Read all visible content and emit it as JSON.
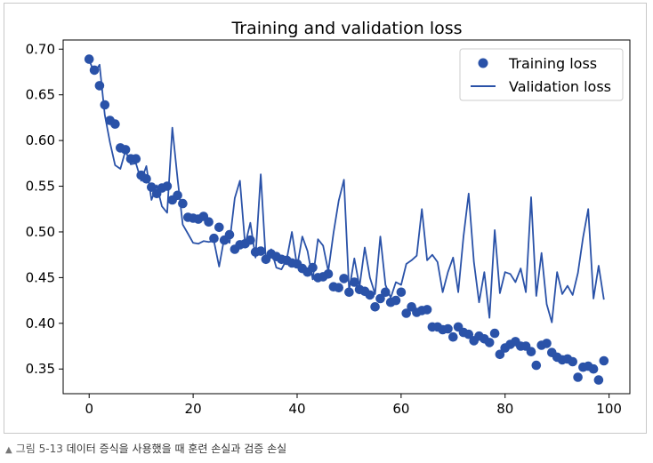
{
  "caption": {
    "marker": "▲",
    "figure_label": "그림 5-13",
    "text": "데이터 증식을 사용했을 때 훈련 손실과 검증 손실"
  },
  "colors": {
    "series": "#2a52a8",
    "axis": "#000000"
  },
  "chart_data": {
    "type": "line",
    "title": "Training and validation loss",
    "xlabel": "",
    "ylabel": "",
    "xlim": [
      -5,
      104
    ],
    "ylim": [
      0.323,
      0.71
    ],
    "xticks": [
      0,
      20,
      40,
      60,
      80,
      100
    ],
    "xtick_labels": [
      "0",
      "20",
      "40",
      "60",
      "80",
      "100"
    ],
    "yticks": [
      0.35,
      0.4,
      0.45,
      0.5,
      0.55,
      0.6,
      0.65,
      0.7
    ],
    "ytick_labels": [
      "0.35",
      "0.40",
      "0.45",
      "0.50",
      "0.55",
      "0.60",
      "0.65",
      "0.70"
    ],
    "legend_position": "top-right",
    "grid": false,
    "series": [
      {
        "name": "Training loss",
        "style": "scatter",
        "x": [
          0,
          1,
          2,
          3,
          4,
          5,
          6,
          7,
          8,
          9,
          10,
          11,
          12,
          13,
          14,
          15,
          16,
          17,
          18,
          19,
          20,
          21,
          22,
          23,
          24,
          25,
          26,
          27,
          28,
          29,
          30,
          31,
          32,
          33,
          34,
          35,
          36,
          37,
          38,
          39,
          40,
          41,
          42,
          43,
          44,
          45,
          46,
          47,
          48,
          49,
          50,
          51,
          52,
          53,
          54,
          55,
          56,
          57,
          58,
          59,
          60,
          61,
          62,
          63,
          64,
          65,
          66,
          67,
          68,
          69,
          70,
          71,
          72,
          73,
          74,
          75,
          76,
          77,
          78,
          79,
          80,
          81,
          82,
          83,
          84,
          85,
          86,
          87,
          88,
          89,
          90,
          91,
          92,
          93,
          94,
          95,
          96,
          97,
          98,
          99
        ],
        "values": [
          0.689,
          0.677,
          0.66,
          0.639,
          0.622,
          0.618,
          0.592,
          0.59,
          0.58,
          0.58,
          0.562,
          0.558,
          0.549,
          0.542,
          0.548,
          0.55,
          0.535,
          0.54,
          0.531,
          0.516,
          0.515,
          0.514,
          0.517,
          0.511,
          0.493,
          0.505,
          0.491,
          0.497,
          0.481,
          0.486,
          0.487,
          0.491,
          0.478,
          0.479,
          0.47,
          0.476,
          0.473,
          0.47,
          0.469,
          0.466,
          0.465,
          0.46,
          0.456,
          0.461,
          0.45,
          0.451,
          0.454,
          0.44,
          0.439,
          0.449,
          0.434,
          0.445,
          0.437,
          0.435,
          0.431,
          0.418,
          0.427,
          0.434,
          0.423,
          0.425,
          0.434,
          0.411,
          0.418,
          0.412,
          0.414,
          0.415,
          0.396,
          0.396,
          0.393,
          0.394,
          0.385,
          0.396,
          0.39,
          0.388,
          0.381,
          0.386,
          0.383,
          0.379,
          0.389,
          0.366,
          0.373,
          0.377,
          0.38,
          0.375,
          0.375,
          0.369,
          0.354,
          0.376,
          0.378,
          0.368,
          0.363,
          0.36,
          0.361,
          0.358,
          0.341,
          0.352,
          0.353,
          0.35,
          0.338,
          0.359
        ]
      },
      {
        "name": "Validation loss",
        "style": "line",
        "x": [
          0,
          1,
          2,
          3,
          4,
          5,
          6,
          7,
          8,
          9,
          10,
          11,
          12,
          13,
          14,
          15,
          16,
          17,
          18,
          19,
          20,
          21,
          22,
          23,
          24,
          25,
          26,
          27,
          28,
          29,
          30,
          31,
          32,
          33,
          34,
          35,
          36,
          37,
          38,
          39,
          40,
          41,
          42,
          43,
          44,
          45,
          46,
          47,
          48,
          49,
          50,
          51,
          52,
          53,
          54,
          55,
          56,
          57,
          58,
          59,
          60,
          61,
          62,
          63,
          64,
          65,
          66,
          67,
          68,
          69,
          70,
          71,
          72,
          73,
          74,
          75,
          76,
          77,
          78,
          79,
          80,
          81,
          82,
          83,
          84,
          85,
          86,
          87,
          88,
          89,
          90,
          91,
          92,
          93,
          94,
          95,
          96,
          97,
          98,
          99
        ],
        "values": [
          0.688,
          0.674,
          0.683,
          0.628,
          0.598,
          0.573,
          0.569,
          0.589,
          0.574,
          0.575,
          0.556,
          0.572,
          0.535,
          0.551,
          0.528,
          0.521,
          0.614,
          0.558,
          0.508,
          0.498,
          0.488,
          0.487,
          0.49,
          0.489,
          0.49,
          0.462,
          0.494,
          0.488,
          0.537,
          0.556,
          0.486,
          0.51,
          0.472,
          0.563,
          0.467,
          0.481,
          0.461,
          0.459,
          0.47,
          0.5,
          0.462,
          0.495,
          0.479,
          0.448,
          0.492,
          0.485,
          0.457,
          0.499,
          0.534,
          0.557,
          0.436,
          0.471,
          0.44,
          0.483,
          0.45,
          0.432,
          0.495,
          0.442,
          0.428,
          0.445,
          0.442,
          0.465,
          0.469,
          0.474,
          0.525,
          0.469,
          0.475,
          0.467,
          0.434,
          0.456,
          0.472,
          0.434,
          0.495,
          0.542,
          0.467,
          0.423,
          0.456,
          0.406,
          0.502,
          0.433,
          0.456,
          0.454,
          0.445,
          0.46,
          0.434,
          0.538,
          0.43,
          0.477,
          0.421,
          0.401,
          0.456,
          0.432,
          0.441,
          0.431,
          0.455,
          0.494,
          0.525,
          0.427,
          0.463,
          0.426
        ]
      }
    ]
  }
}
